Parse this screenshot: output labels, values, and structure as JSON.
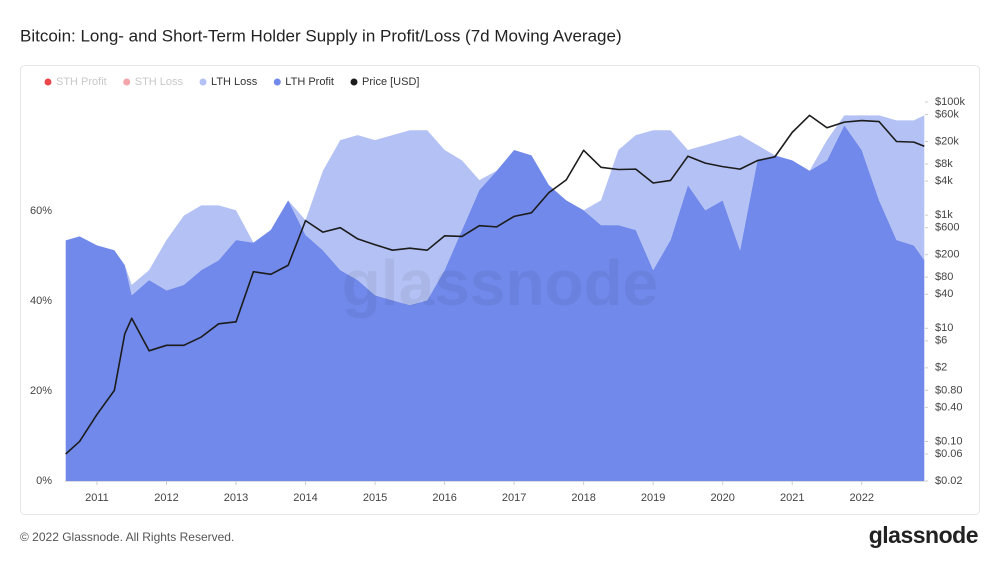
{
  "header": {
    "title": "Bitcoin: Long- and Short-Term Holder Supply in Profit/Loss (7d Moving Average)"
  },
  "watermark": "glassnode",
  "chart_data": {
    "type": "area",
    "stacked": true,
    "legend": "top-left",
    "x": [
      2010.55,
      2010.75,
      2011.0,
      2011.25,
      2011.4,
      2011.5,
      2011.75,
      2012.0,
      2012.25,
      2012.5,
      2012.75,
      2013.0,
      2013.25,
      2013.5,
      2013.75,
      2014.0,
      2014.25,
      2014.5,
      2014.75,
      2015.0,
      2015.25,
      2015.5,
      2015.75,
      2016.0,
      2016.25,
      2016.5,
      2016.75,
      2017.0,
      2017.25,
      2017.5,
      2017.75,
      2018.0,
      2018.25,
      2018.5,
      2018.75,
      2019.0,
      2019.25,
      2019.5,
      2019.75,
      2020.0,
      2020.25,
      2020.5,
      2020.75,
      2021.0,
      2021.25,
      2021.5,
      2021.75,
      2022.0,
      2022.25,
      2022.5,
      2022.75,
      2022.9
    ],
    "xlim": [
      2010.54,
      2022.91
    ],
    "xticks": [
      2011,
      2012,
      2013,
      2014,
      2015,
      2016,
      2017,
      2018,
      2019,
      2020,
      2021,
      2022
    ],
    "ylim": [
      0,
      86.5
    ],
    "yticks": [
      {
        "value": 0,
        "label": "0%"
      },
      {
        "value": 20,
        "label": "20%"
      },
      {
        "value": 40,
        "label": "40%"
      },
      {
        "value": 60,
        "label": "60%"
      }
    ],
    "y2scale": "log",
    "y2lim": [
      0.02,
      150000
    ],
    "y2ticks": [
      {
        "value": 100000,
        "label": "$100k"
      },
      {
        "value": 60000,
        "label": "$60k"
      },
      {
        "value": 20000,
        "label": "$20k"
      },
      {
        "value": 8000,
        "label": "$8k"
      },
      {
        "value": 4000,
        "label": "$4k"
      },
      {
        "value": 1000,
        "label": "$1k"
      },
      {
        "value": 600,
        "label": "$600"
      },
      {
        "value": 200,
        "label": "$200"
      },
      {
        "value": 80,
        "label": "$80"
      },
      {
        "value": 40,
        "label": "$40"
      },
      {
        "value": 10,
        "label": "$10"
      },
      {
        "value": 6,
        "label": "$6"
      },
      {
        "value": 2,
        "label": "$2"
      },
      {
        "value": 0.8,
        "label": "$0.80"
      },
      {
        "value": 0.4,
        "label": "$0.40"
      },
      {
        "value": 0.1,
        "label": "$0.10"
      },
      {
        "value": 0.06,
        "label": "$0.06"
      },
      {
        "value": 0.02,
        "label": "$0.02"
      }
    ],
    "series": [
      {
        "name": "STH Profit",
        "color": "#e8474b",
        "hidden": true
      },
      {
        "name": "STH Loss",
        "color": "#f3a6aa",
        "hidden": true
      },
      {
        "name": "LTH Loss",
        "color": "#b3c1f4",
        "values": [
          0,
          0,
          0,
          0,
          0,
          2.3,
          2.2,
          11.2,
          15.4,
          14.4,
          12.2,
          6.6,
          0,
          0,
          0,
          3.3,
          17.7,
          28.9,
          32.2,
          34.5,
          36.7,
          38.9,
          37.8,
          26.7,
          15.5,
          2.2,
          0,
          0,
          0,
          0,
          0,
          0,
          5.5,
          16.7,
          21.1,
          31.1,
          24.4,
          7.8,
          14.5,
          13.4,
          25.6,
          3.4,
          0,
          0,
          0,
          4.5,
          2.2,
          7.7,
          18.9,
          26.6,
          27.8,
          32.2
        ]
      },
      {
        "name": "LTH Profit",
        "color": "#7189ea",
        "values": [
          53.5,
          54.4,
          52.4,
          51.3,
          48,
          41.3,
          44.7,
          42.4,
          43.6,
          46.9,
          49.1,
          53.6,
          53,
          55.8,
          62.4,
          54.7,
          51.3,
          46.9,
          44.7,
          41.3,
          40.2,
          39.1,
          40.2,
          46.9,
          55.8,
          64.7,
          69,
          73.6,
          72.4,
          65.8,
          62.4,
          60.2,
          56.9,
          56.9,
          55.8,
          46.9,
          53.6,
          65.8,
          60.2,
          62.4,
          51.3,
          71.3,
          72.4,
          71.3,
          69,
          71.3,
          79.1,
          73.6,
          62.4,
          53.6,
          52.4,
          49.1
        ]
      },
      {
        "name": "Price [USD]",
        "color": "#1c1c1c",
        "type": "line",
        "axis": "y2",
        "values": [
          0.06,
          0.1,
          0.3,
          0.8,
          8,
          15,
          4,
          5,
          5,
          7,
          12,
          13,
          100,
          90,
          130,
          800,
          500,
          600,
          380,
          300,
          240,
          260,
          240,
          430,
          420,
          650,
          620,
          950,
          1100,
          2500,
          4200,
          14000,
          7000,
          6400,
          6500,
          3700,
          4100,
          11000,
          8300,
          7200,
          6500,
          9200,
          10700,
          29000,
          58000,
          35000,
          44000,
          47000,
          45000,
          20000,
          19500,
          16500
        ]
      }
    ]
  },
  "footer": {
    "copyright": "© 2022 Glassnode. All Rights Reserved.",
    "logo": "glassnode"
  }
}
